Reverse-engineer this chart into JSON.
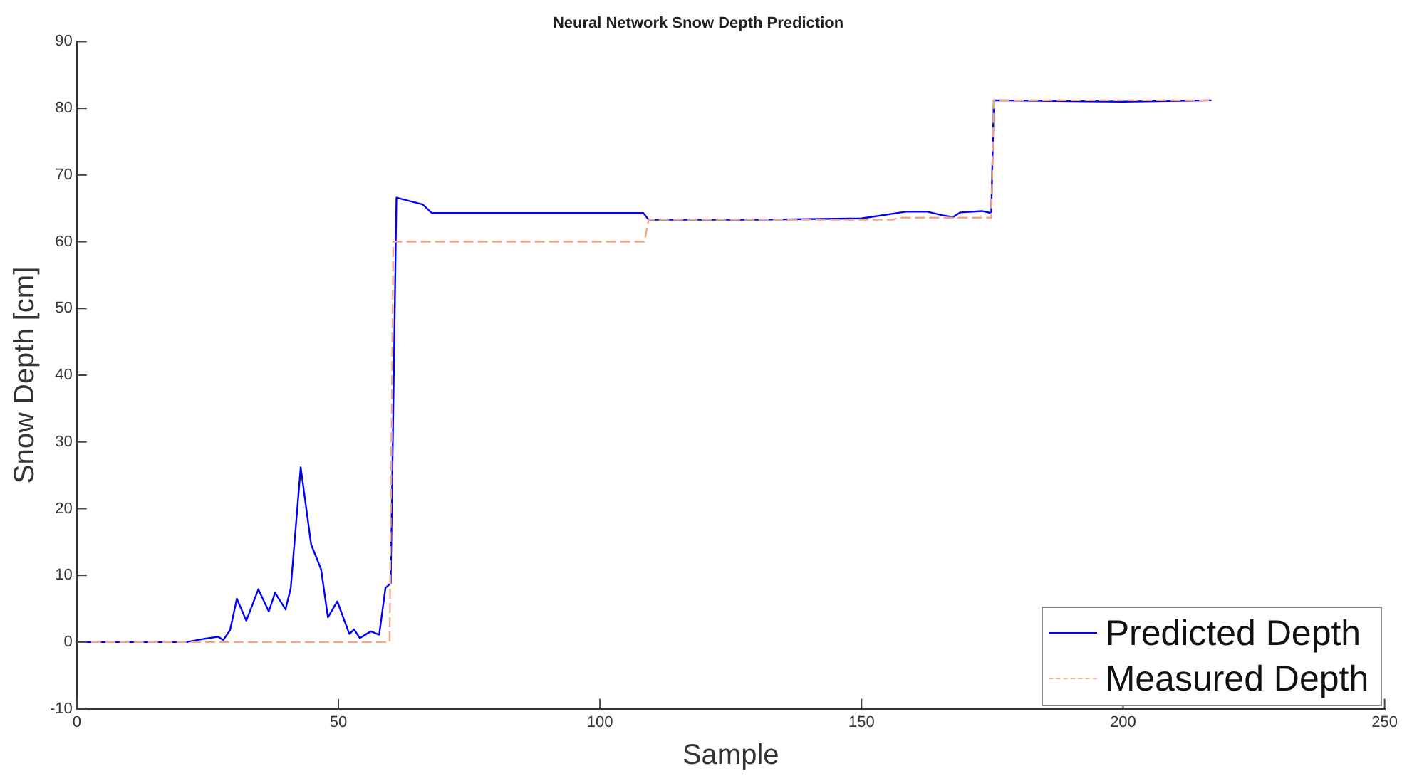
{
  "chart_data": {
    "type": "line",
    "title": "Neural Network Snow Depth Prediction",
    "xlabel": "Sample",
    "ylabel": "Snow Depth [cm]",
    "xlim": [
      0,
      250
    ],
    "xticks": [
      0,
      50,
      100,
      150,
      200,
      250
    ],
    "ylim": [
      -10,
      90
    ],
    "yticks": [
      -10,
      0,
      10,
      20,
      30,
      40,
      50,
      60,
      70,
      80,
      90
    ],
    "grid": false,
    "legend": "bottom right",
    "marker": "none",
    "series": [
      {
        "name": "Predicted Depth",
        "color": "#0000ff",
        "line_style": "solid",
        "x": [
          0,
          21,
          24.5,
          27,
          28,
          29.3,
          30.6,
          32.4,
          34.7,
          36.7,
          37.9,
          39.9,
          40.9,
          42.8,
          44.8,
          46.7,
          48,
          49.8,
          52.1,
          53,
          54.1,
          56.2,
          57.8,
          59,
          60,
          61.1,
          66.1,
          67.9,
          108.3,
          109.3,
          130,
          150,
          158.5,
          162.6,
          165.3,
          167.5,
          168.9,
          173,
          174.8,
          175.3,
          200,
          216.9
        ],
        "values": [
          0,
          0,
          0.5,
          0.8,
          0.3,
          1.8,
          6.5,
          3.2,
          7.9,
          4.6,
          7.4,
          4.9,
          8.1,
          26.2,
          14.6,
          10.9,
          3.7,
          6.1,
          1.2,
          1.9,
          0.6,
          1.6,
          1.1,
          8.1,
          8.8,
          66.6,
          65.6,
          64.3,
          64.3,
          63.3,
          63.3,
          63.5,
          64.5,
          64.5,
          64,
          63.7,
          64.4,
          64.6,
          64.3,
          81.2,
          81,
          81.2
        ]
      },
      {
        "name": "Measured Depth",
        "color": "#f4a582",
        "line_style": "dashed",
        "x": [
          0,
          59.8,
          60.5,
          108.5,
          109.3,
          156,
          157,
          174.8,
          175.3,
          216.9
        ],
        "values": [
          0,
          0,
          60,
          60,
          63.3,
          63.3,
          63.6,
          63.6,
          81.2,
          81.2
        ]
      }
    ]
  }
}
